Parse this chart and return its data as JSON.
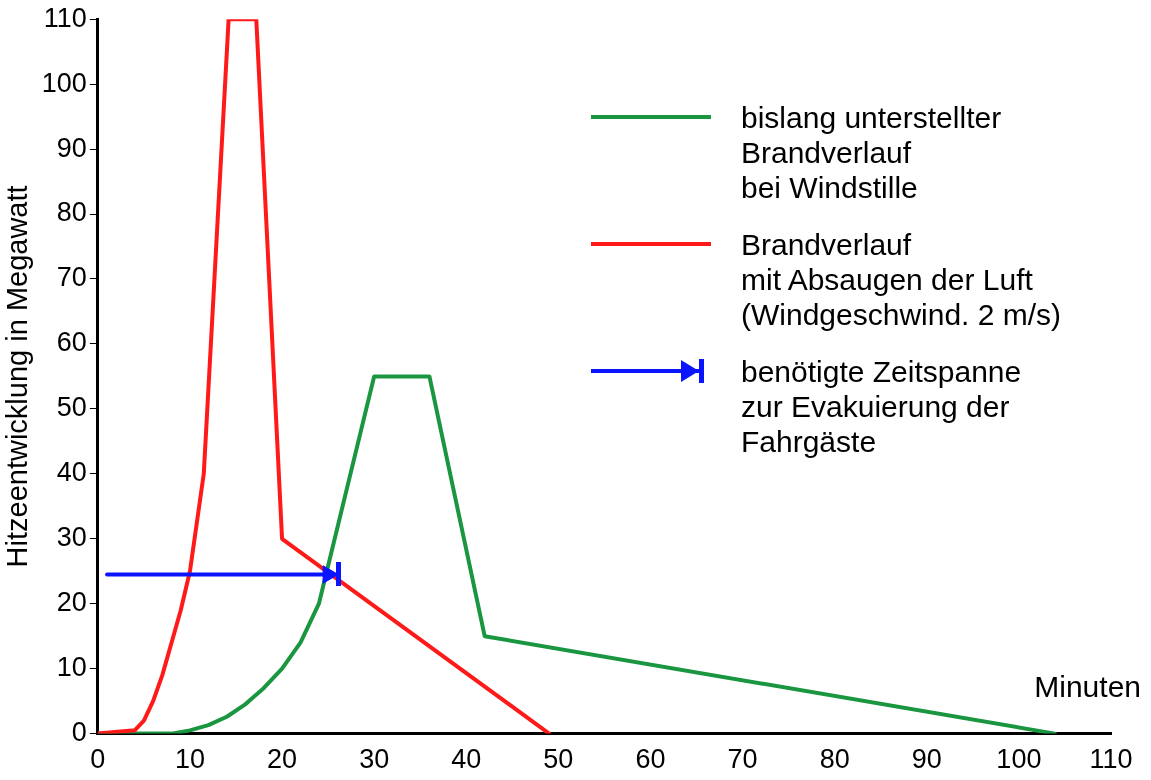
{
  "chart_data": {
    "type": "line",
    "xlabel": "Minuten",
    "ylabel": "Hitzeentwicklung in Megawatt",
    "xlim": [
      0,
      110
    ],
    "xticks": [
      0,
      10,
      20,
      30,
      40,
      50,
      60,
      70,
      80,
      90,
      100,
      110
    ],
    "ylim": [
      0,
      110
    ],
    "yticks": [
      0,
      10,
      20,
      30,
      40,
      50,
      60,
      70,
      80,
      90,
      100,
      110
    ],
    "grid": false,
    "legend": "top right",
    "marker": "none",
    "line_style": "solid",
    "series": [
      {
        "name": "bislang unterstellter\nBrandverlauf\nbei Windstille",
        "color": "#1a9641",
        "x": [
          0,
          8,
          10,
          12,
          14,
          16,
          18,
          20,
          22,
          24,
          30,
          36,
          42,
          103.9
        ],
        "values": [
          0,
          0,
          0.5,
          1.3,
          2.6,
          4.5,
          7,
          10,
          14,
          20,
          55,
          55,
          15,
          0
        ]
      },
      {
        "name": "Brandverlauf\nmit Absaugen der Luft\n(Windgeschwind. 2 m/s)",
        "color": "#ff1a1a",
        "x": [
          0,
          4,
          5,
          6,
          7,
          8,
          9,
          10,
          11.5,
          14.2,
          17.2,
          20,
          49
        ],
        "values": [
          0,
          0.5,
          2,
          5,
          9,
          14,
          19,
          25,
          40,
          110,
          110,
          30,
          0
        ]
      },
      {
        "name": "benötigte Zeitspanne\nzur Evakuierung der\nFahrgäste",
        "color": "#0a14ff",
        "marker": "triangle",
        "x": [
          1,
          25
        ],
        "values": [
          24.5,
          24.5
        ]
      }
    ]
  }
}
